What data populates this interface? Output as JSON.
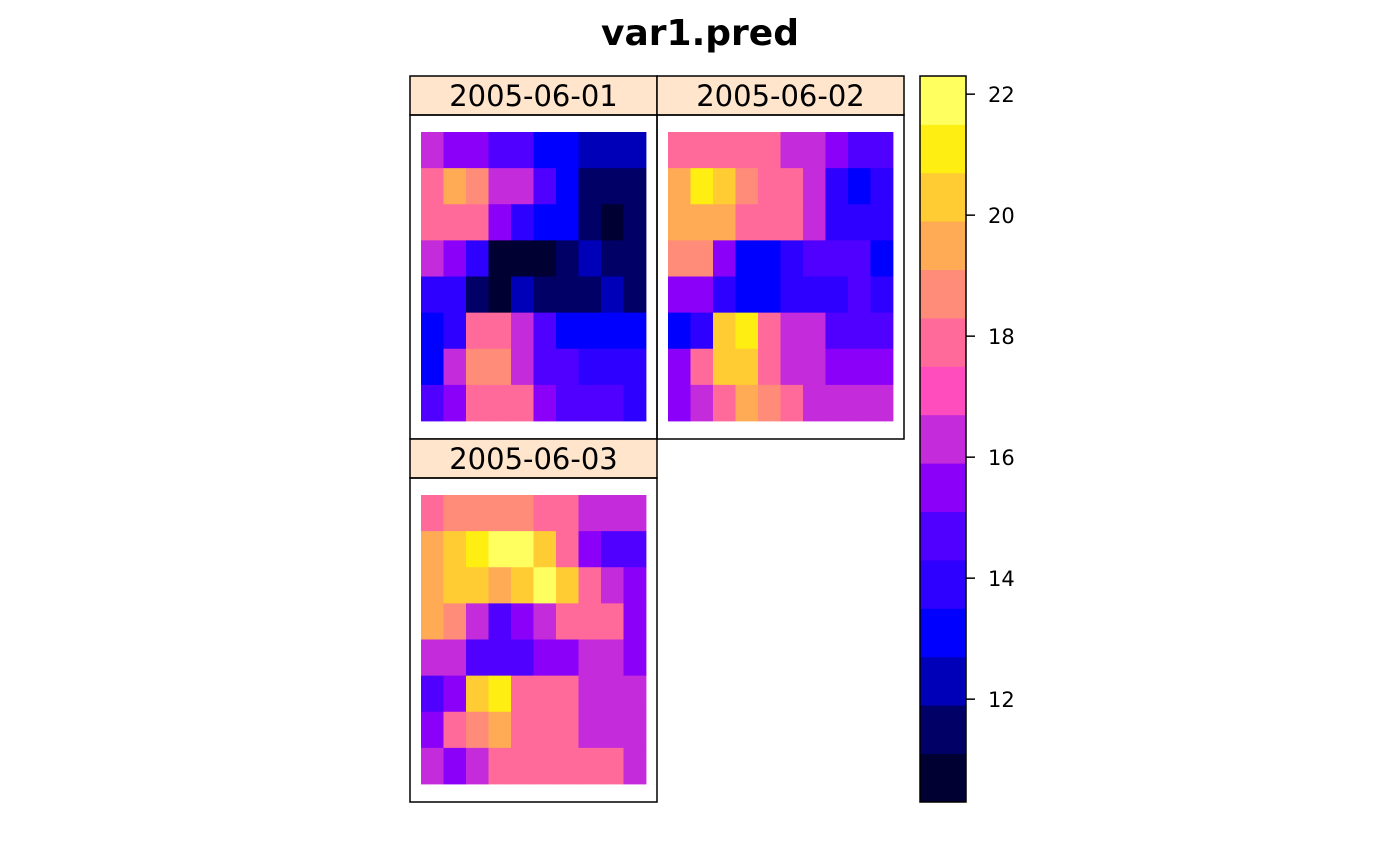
{
  "chart_data": {
    "type": "heatmap",
    "title": "var1.pred",
    "panels": [
      {
        "label": "2005-06-01",
        "values": [
          [
            16.5,
            15.5,
            15.5,
            14.5,
            14.5,
            13.5,
            13.5,
            12.5,
            12.5,
            12.5
          ],
          [
            18.0,
            19.5,
            18.5,
            16.5,
            16.5,
            14.5,
            13.5,
            11.5,
            11.5,
            11.5
          ],
          [
            17.5,
            18.0,
            17.5,
            15.5,
            14.0,
            13.0,
            13.0,
            11.5,
            10.5,
            11.5
          ],
          [
            16.5,
            15.5,
            14.0,
            10.5,
            10.5,
            10.5,
            11.5,
            12.5,
            11.5,
            11.5
          ],
          [
            14.0,
            14.0,
            11.5,
            11.0,
            12.0,
            11.5,
            11.5,
            11.5,
            12.5,
            11.5
          ],
          [
            13.0,
            14.0,
            17.5,
            17.5,
            16.5,
            14.5,
            13.5,
            13.0,
            13.0,
            13.0
          ],
          [
            13.5,
            16.5,
            18.5,
            18.5,
            16.5,
            14.5,
            14.5,
            14.0,
            14.0,
            14.0
          ],
          [
            14.5,
            15.5,
            18.0,
            18.0,
            17.5,
            15.5,
            14.5,
            14.5,
            14.5,
            14.0
          ]
        ]
      },
      {
        "label": "2005-06-02",
        "values": [
          [
            18.0,
            18.0,
            17.5,
            17.5,
            17.5,
            16.5,
            16.5,
            15.5,
            14.5,
            14.5
          ],
          [
            19.5,
            21.0,
            20.5,
            18.5,
            18.0,
            18.0,
            16.5,
            14.0,
            13.0,
            14.0
          ],
          [
            19.5,
            19.5,
            19.5,
            18.0,
            18.0,
            18.0,
            16.5,
            14.0,
            14.0,
            14.0
          ],
          [
            18.5,
            18.5,
            15.5,
            13.0,
            13.0,
            14.0,
            14.5,
            14.5,
            14.5,
            13.0
          ],
          [
            15.5,
            15.5,
            14.0,
            13.0,
            13.0,
            14.0,
            14.0,
            14.0,
            14.5,
            14.0
          ],
          [
            13.0,
            14.0,
            20.5,
            21.0,
            18.0,
            16.5,
            16.5,
            14.5,
            14.5,
            14.5
          ],
          [
            15.5,
            17.5,
            20.5,
            20.5,
            18.0,
            16.5,
            16.5,
            15.5,
            15.5,
            15.5
          ],
          [
            15.5,
            16.5,
            18.0,
            19.5,
            18.5,
            17.5,
            16.5,
            16.5,
            16.5,
            16.5
          ]
        ]
      },
      {
        "label": "2005-06-03",
        "values": [
          [
            18.0,
            18.5,
            18.5,
            18.5,
            18.5,
            18.0,
            17.5,
            16.5,
            16.5,
            16.5
          ],
          [
            19.5,
            20.5,
            21.0,
            22.0,
            22.0,
            20.5,
            18.0,
            15.5,
            14.5,
            14.5
          ],
          [
            19.5,
            20.5,
            20.5,
            19.5,
            20.5,
            22.0,
            20.5,
            18.0,
            16.5,
            15.5
          ],
          [
            19.5,
            18.5,
            16.5,
            14.5,
            15.5,
            16.5,
            17.5,
            18.0,
            17.5,
            15.5
          ],
          [
            16.5,
            16.5,
            14.5,
            14.5,
            14.5,
            15.5,
            15.5,
            16.5,
            16.5,
            15.5
          ],
          [
            14.5,
            15.5,
            20.5,
            21.0,
            18.0,
            17.5,
            17.5,
            16.5,
            16.5,
            16.5
          ],
          [
            15.5,
            17.5,
            18.5,
            19.5,
            17.5,
            17.5,
            17.5,
            16.5,
            16.5,
            16.5
          ],
          [
            16.5,
            15.5,
            16.5,
            18.0,
            18.0,
            17.5,
            17.5,
            17.5,
            17.5,
            16.5
          ]
        ]
      }
    ],
    "colorbar": {
      "range": [
        10.3,
        22.3
      ],
      "ticks": [
        12,
        14,
        16,
        18,
        20,
        22
      ],
      "tick_labels": [
        "12",
        "14",
        "16",
        "18",
        "20",
        "22"
      ],
      "colors": [
        "#000033",
        "#000066",
        "#0000B8",
        "#0000FF",
        "#2E00FF",
        "#5000FF",
        "#8A00F8",
        "#C42BDB",
        "#FF4DBE",
        "#FF6A9A",
        "#FF8C78",
        "#FFAA55",
        "#FFCC33",
        "#FFEE11",
        "#FFFF60"
      ]
    },
    "strip_color": "#FFE5CC",
    "na_color": "#FFFFFF"
  }
}
